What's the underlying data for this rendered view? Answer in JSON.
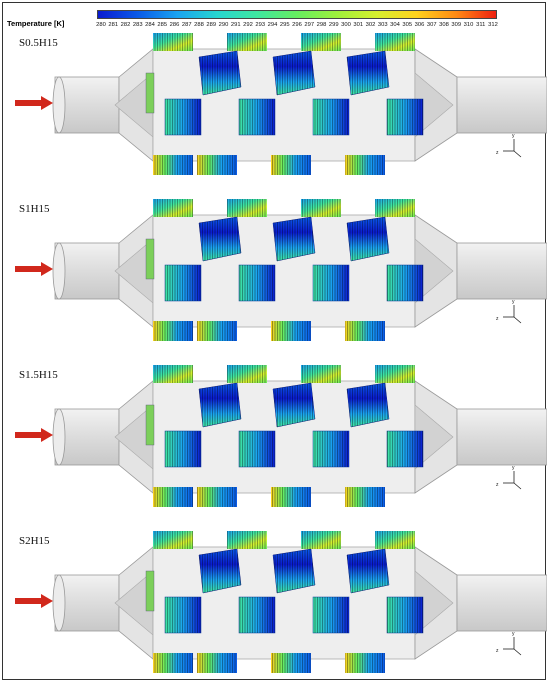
{
  "colorbar": {
    "title": "Temperature [K]",
    "ticks": [
      "280",
      "281",
      "282",
      "283",
      "284",
      "285",
      "286",
      "287",
      "288",
      "289",
      "290",
      "291",
      "292",
      "293",
      "294",
      "295",
      "296",
      "297",
      "298",
      "299",
      "300",
      "301",
      "302",
      "303",
      "304",
      "305",
      "306",
      "307",
      "308",
      "309",
      "310",
      "311",
      "312"
    ],
    "colors": [
      "#0a1bd0",
      "#0a5ae8",
      "#1aa4f0",
      "#27d6d0",
      "#3fe6a0",
      "#66ee60",
      "#9ef03c",
      "#d6f02e",
      "#ffd21e",
      "#ff8a14",
      "#ee2010"
    ]
  },
  "panels": [
    {
      "label": "S0.5H15"
    },
    {
      "label": "S1H15"
    },
    {
      "label": "S1.5H15"
    },
    {
      "label": "S2H15"
    }
  ],
  "axis_triad": {
    "z": "z",
    "y": "y"
  }
}
